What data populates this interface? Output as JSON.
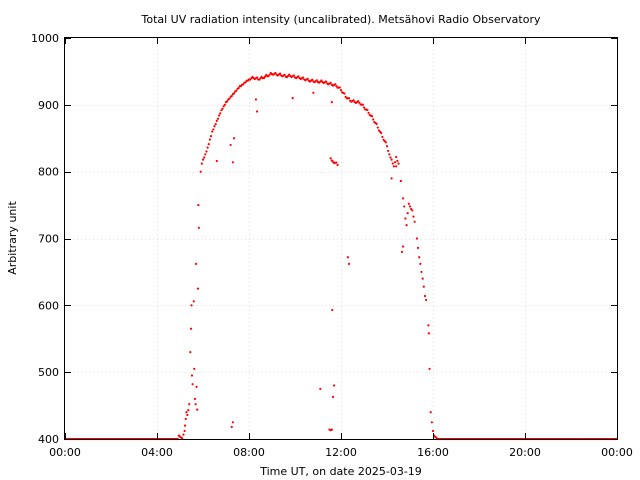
{
  "chart_data": {
    "type": "scatter",
    "title": "Total UV radiation intensity (uncalibrated). Metsähovi Radio Observatory",
    "xlabel": "Time UT, on date 2025-03-19",
    "ylabel": "Arbitrary unit",
    "xlim": [
      0,
      24
    ],
    "ylim": [
      400,
      1000
    ],
    "x_ticks": [
      0,
      4,
      8,
      12,
      16,
      20,
      24
    ],
    "x_tick_labels": [
      "00:00",
      "04:00",
      "08:00",
      "12:00",
      "16:00",
      "20:00",
      "00:00"
    ],
    "y_ticks": [
      400,
      500,
      600,
      700,
      800,
      900,
      1000
    ],
    "y_tick_labels": [
      "400",
      "500",
      "600",
      "700",
      "800",
      "900",
      "1000"
    ],
    "grid": true,
    "series": [
      {
        "color": "#ff0000",
        "points": [
          [
            0.0,
            400
          ],
          [
            0.5,
            400
          ],
          [
            1.0,
            400
          ],
          [
            1.5,
            400
          ],
          [
            2.0,
            400
          ],
          [
            2.5,
            400
          ],
          [
            3.0,
            400
          ],
          [
            3.5,
            400
          ],
          [
            4.0,
            400
          ],
          [
            4.5,
            400
          ],
          [
            4.9,
            400
          ],
          [
            4.95,
            405
          ],
          [
            5.05,
            402
          ],
          [
            5.1,
            401
          ],
          [
            5.2,
            412
          ],
          [
            5.22,
            420
          ],
          [
            5.25,
            430
          ],
          [
            5.28,
            440
          ],
          [
            5.32,
            436
          ],
          [
            5.4,
            452
          ],
          [
            5.45,
            530
          ],
          [
            5.48,
            565
          ],
          [
            5.5,
            600
          ],
          [
            5.52,
            495
          ],
          [
            5.55,
            482
          ],
          [
            5.6,
            606
          ],
          [
            5.62,
            505
          ],
          [
            5.65,
            460
          ],
          [
            5.68,
            452
          ],
          [
            5.7,
            662
          ],
          [
            5.72,
            478
          ],
          [
            5.75,
            444
          ],
          [
            5.78,
            625
          ],
          [
            5.8,
            750
          ],
          [
            5.82,
            716
          ],
          [
            5.9,
            800
          ],
          [
            5.95,
            812
          ],
          [
            6.0,
            818
          ],
          [
            6.1,
            826
          ],
          [
            6.2,
            836
          ],
          [
            6.3,
            848
          ],
          [
            6.4,
            860
          ],
          [
            6.5,
            868
          ],
          [
            6.6,
            876
          ],
          [
            6.7,
            884
          ],
          [
            6.8,
            892
          ],
          [
            6.9,
            898
          ],
          [
            7.0,
            904
          ],
          [
            7.1,
            908
          ],
          [
            7.2,
            912
          ],
          [
            7.3,
            916
          ],
          [
            7.4,
            920
          ],
          [
            7.5,
            924
          ],
          [
            7.6,
            928
          ],
          [
            7.7,
            930
          ],
          [
            7.8,
            933
          ],
          [
            7.9,
            936
          ],
          [
            8.0,
            938
          ],
          [
            8.2,
            940
          ],
          [
            8.4,
            938
          ],
          [
            8.6,
            940
          ],
          [
            8.8,
            943
          ],
          [
            9.0,
            946
          ],
          [
            9.2,
            945
          ],
          [
            9.4,
            944
          ],
          [
            9.6,
            942
          ],
          [
            9.8,
            943
          ],
          [
            10.0,
            941
          ],
          [
            10.2,
            940
          ],
          [
            10.4,
            938
          ],
          [
            10.6,
            936
          ],
          [
            10.8,
            935
          ],
          [
            11.0,
            934
          ],
          [
            11.2,
            934
          ],
          [
            11.4,
            932
          ],
          [
            11.6,
            930
          ],
          [
            11.8,
            928
          ],
          [
            12.0,
            922
          ],
          [
            12.2,
            912
          ],
          [
            12.4,
            906
          ],
          [
            12.6,
            904
          ],
          [
            12.8,
            903
          ],
          [
            13.0,
            896
          ],
          [
            13.2,
            888
          ],
          [
            13.4,
            878
          ],
          [
            13.6,
            866
          ],
          [
            13.8,
            852
          ],
          [
            14.0,
            838
          ],
          [
            14.1,
            826
          ],
          [
            14.2,
            818
          ],
          [
            14.3,
            808
          ],
          [
            14.4,
            822
          ],
          [
            14.5,
            812
          ],
          [
            14.6,
            786
          ],
          [
            14.7,
            760
          ],
          [
            14.75,
            748
          ],
          [
            14.8,
            730
          ],
          [
            14.85,
            720
          ],
          [
            14.9,
            738
          ],
          [
            14.95,
            752
          ],
          [
            15.0,
            748
          ],
          [
            15.1,
            742
          ],
          [
            15.2,
            725
          ],
          [
            15.3,
            700
          ],
          [
            15.35,
            686
          ],
          [
            15.4,
            672
          ],
          [
            15.45,
            662
          ],
          [
            15.5,
            650
          ],
          [
            15.55,
            640
          ],
          [
            15.6,
            628
          ],
          [
            15.65,
            614
          ],
          [
            15.7,
            608
          ],
          [
            15.8,
            570
          ],
          [
            15.82,
            558
          ],
          [
            15.85,
            505
          ],
          [
            15.9,
            440
          ],
          [
            15.95,
            425
          ],
          [
            16.0,
            412
          ],
          [
            16.05,
            405
          ],
          [
            16.2,
            400
          ],
          [
            16.5,
            400
          ],
          [
            17.0,
            400
          ],
          [
            17.5,
            400
          ],
          [
            18.0,
            400
          ],
          [
            18.5,
            400
          ],
          [
            19.0,
            400
          ],
          [
            19.5,
            400
          ],
          [
            20.0,
            400
          ],
          [
            20.5,
            400
          ],
          [
            21.0,
            400
          ],
          [
            21.5,
            400
          ],
          [
            22.0,
            400
          ],
          [
            22.5,
            400
          ],
          [
            23.0,
            400
          ],
          [
            23.5,
            400
          ],
          [
            24.0,
            400
          ],
          [
            6.6,
            816
          ],
          [
            7.2,
            840
          ],
          [
            7.3,
            814
          ],
          [
            7.35,
            850
          ],
          [
            7.25,
            418
          ],
          [
            7.3,
            425
          ],
          [
            8.3,
            908
          ],
          [
            8.35,
            890
          ],
          [
            9.9,
            910
          ],
          [
            10.8,
            918
          ],
          [
            11.1,
            475
          ],
          [
            11.5,
            414
          ],
          [
            11.6,
            414
          ],
          [
            11.65,
            463
          ],
          [
            11.7,
            480
          ],
          [
            11.55,
            820
          ],
          [
            11.65,
            815
          ],
          [
            11.85,
            810
          ],
          [
            11.6,
            904
          ],
          [
            11.62,
            593
          ],
          [
            12.3,
            672
          ],
          [
            12.35,
            662
          ],
          [
            14.2,
            790
          ],
          [
            14.7,
            688
          ],
          [
            14.65,
            680
          ],
          [
            14.4,
            808
          ]
        ]
      }
    ]
  }
}
